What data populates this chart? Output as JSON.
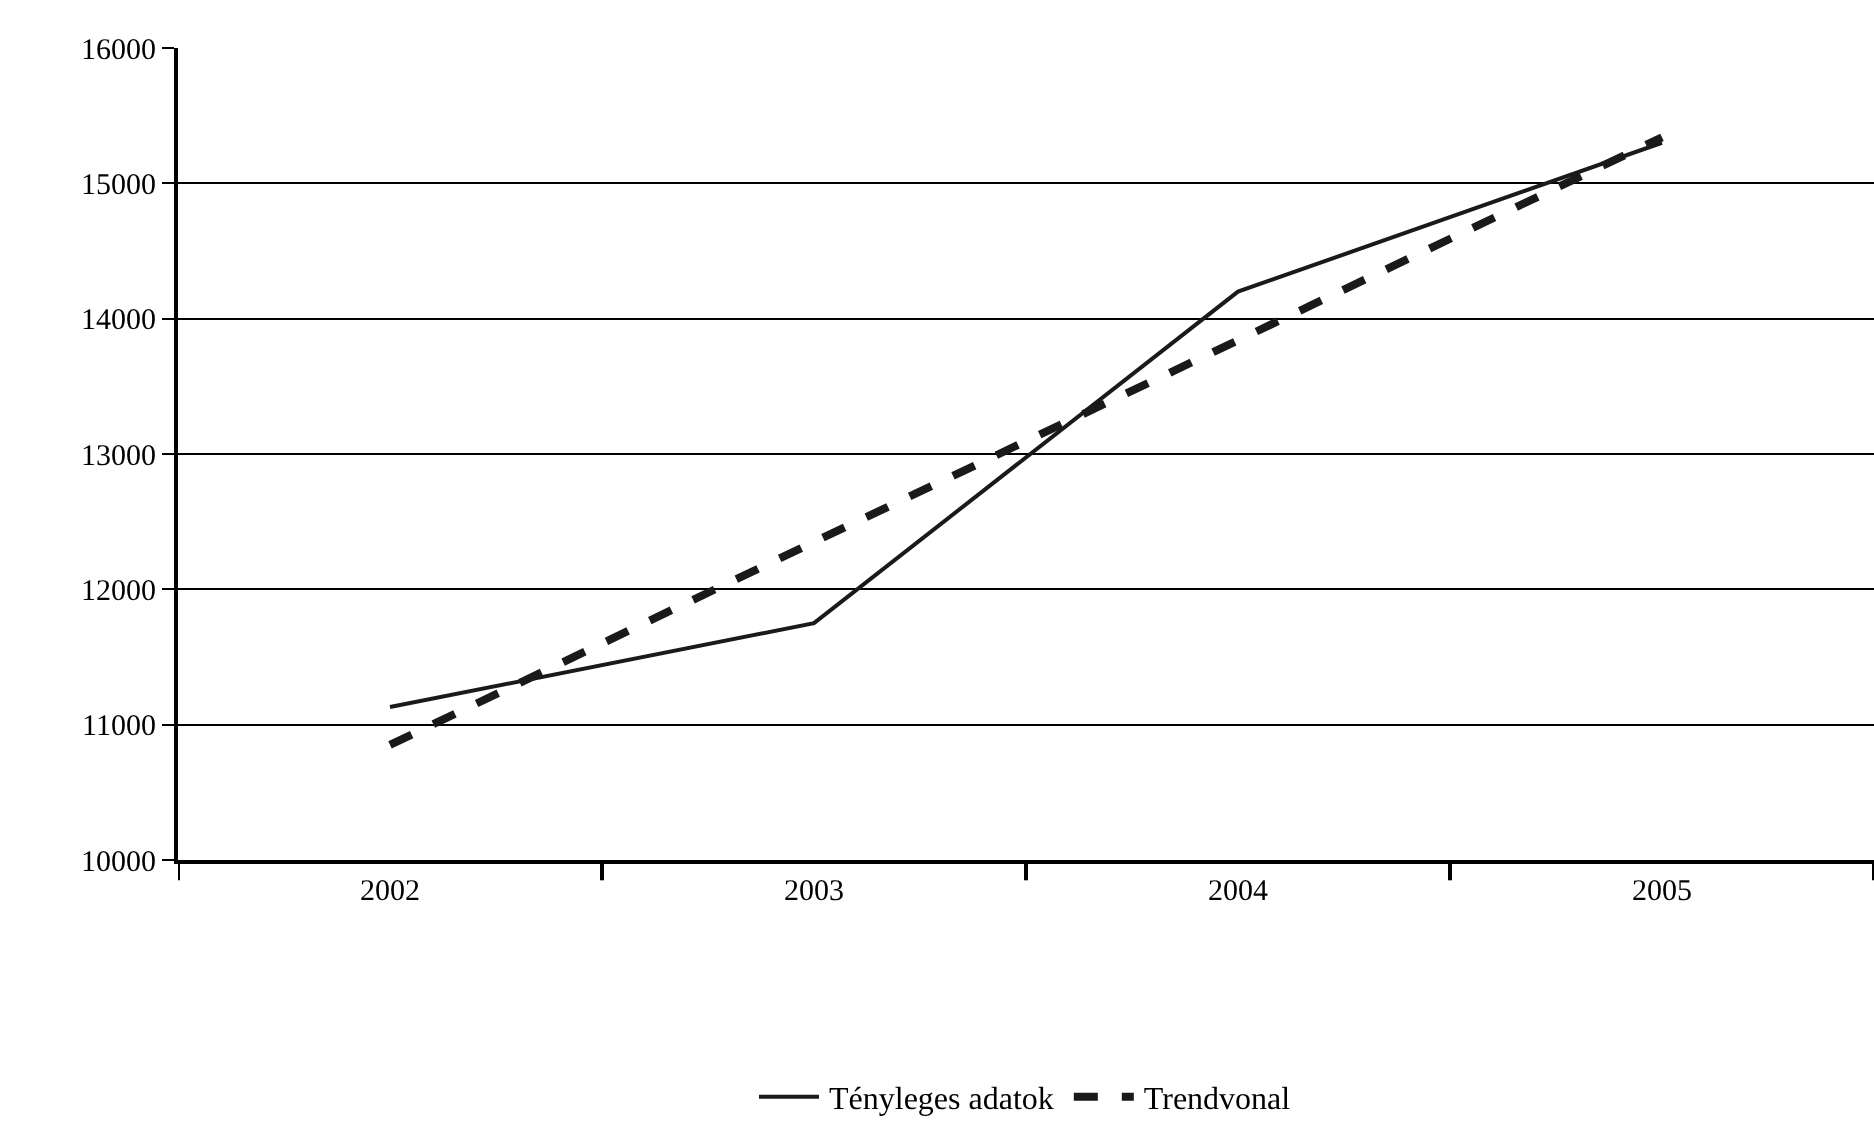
{
  "chart_data": {
    "type": "line",
    "categories": [
      "2002",
      "2003",
      "2004",
      "2005"
    ],
    "series": [
      {
        "name": "Tényleges adatok",
        "color": "#1a1a1a",
        "values": [
          11130,
          11750,
          14200,
          15300
        ],
        "line_style": "solid"
      },
      {
        "name": "Trendvonal",
        "color": "#1a1a1a",
        "values": [
          10850,
          12350,
          13840,
          15340
        ],
        "line_style": "dashed"
      }
    ],
    "ylim": [
      10000,
      16000
    ],
    "yticks": [
      10000,
      11000,
      12000,
      13000,
      14000,
      15000,
      16000
    ],
    "grid": "y",
    "legend": "bottom",
    "marker": "none"
  }
}
